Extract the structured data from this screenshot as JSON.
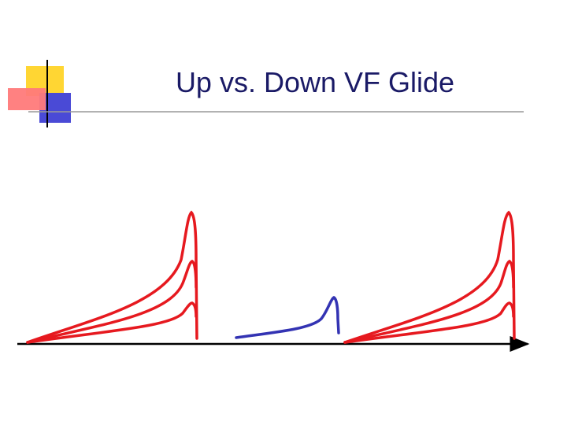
{
  "slide": {
    "title": "Up vs. Down VF Glide"
  },
  "colors": {
    "title_text": "#1a1a66",
    "decor_yellow": "#ffd633",
    "decor_red": "#ff7a7a",
    "decor_blue": "#4a4ad6",
    "rule_line": "#999999",
    "curve_red": "#e6191f",
    "curve_blue": "#3333b3",
    "baseline": "#000000"
  },
  "diagram": {
    "curve_groups": [
      {
        "name": "left-glide-group",
        "color": "red",
        "curves": 3
      },
      {
        "name": "center-glide",
        "color": "blue",
        "curves": 1
      },
      {
        "name": "right-glide-group",
        "color": "red",
        "curves": 3
      }
    ]
  }
}
